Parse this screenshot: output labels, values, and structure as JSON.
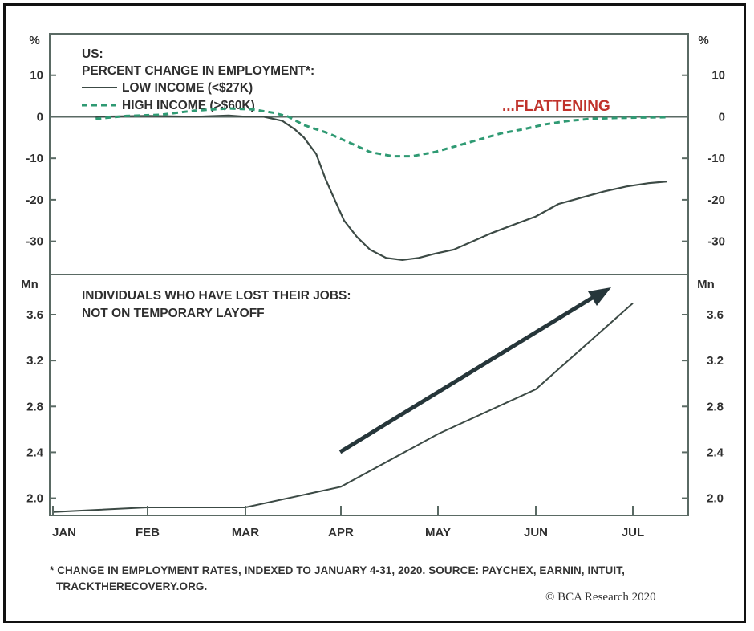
{
  "colors": {
    "frame": "#111111",
    "axis": "#5a6a64",
    "low_income_line": "#3c4a45",
    "high_income_line": "#2f9a73",
    "annotation_red": "#c0322b",
    "arrow": "#26363a",
    "text": "#2f2f2f"
  },
  "chart_data": [
    {
      "type": "line",
      "title_lines": [
        "US:",
        "PERCENT CHANGE IN EMPLOYMENT*:"
      ],
      "left_unit": "%",
      "right_unit": "%",
      "ylim": [
        -38,
        20
      ],
      "y_ticks": [
        10,
        0,
        -10,
        -20,
        -30
      ],
      "y_tick_labels": [
        "10",
        "0",
        "-10",
        "-20",
        "-30"
      ],
      "zero_line": true,
      "annotation": "...FLATTENING",
      "series": [
        {
          "name": "LOW INCOME (<$27K)",
          "style": "solid",
          "points": [
            [
              "01-15",
              0
            ],
            [
              "02-01",
              0.2
            ],
            [
              "02-15",
              0
            ],
            [
              "02-25",
              0.3
            ],
            [
              "03-01",
              0
            ],
            [
              "03-07",
              0
            ],
            [
              "03-13",
              -1
            ],
            [
              "03-17",
              -3
            ],
            [
              "03-20",
              -5
            ],
            [
              "03-24",
              -9
            ],
            [
              "03-27",
              -15
            ],
            [
              "03-30",
              -20
            ],
            [
              "04-02",
              -25
            ],
            [
              "04-06",
              -29
            ],
            [
              "04-10",
              -32
            ],
            [
              "04-15",
              -34
            ],
            [
              "04-20",
              -34.5
            ],
            [
              "04-25",
              -34
            ],
            [
              "04-30",
              -33
            ],
            [
              "05-06",
              -32
            ],
            [
              "05-12",
              -30
            ],
            [
              "05-18",
              -28
            ],
            [
              "05-25",
              -26
            ],
            [
              "06-01",
              -24
            ],
            [
              "06-08",
              -21
            ],
            [
              "06-15",
              -19.5
            ],
            [
              "06-22",
              -18
            ],
            [
              "06-29",
              -16.8
            ],
            [
              "07-06",
              -16
            ],
            [
              "07-12",
              -15.6
            ]
          ]
        },
        {
          "name": "HIGH INCOME (>$60K)",
          "style": "dashed",
          "points": [
            [
              "01-15",
              -0.5
            ],
            [
              "01-25",
              0.2
            ],
            [
              "02-05",
              0.5
            ],
            [
              "02-15",
              1.5
            ],
            [
              "02-25",
              2
            ],
            [
              "03-03",
              1.8
            ],
            [
              "03-10",
              1
            ],
            [
              "03-15",
              0
            ],
            [
              "03-20",
              -2
            ],
            [
              "03-28",
              -4
            ],
            [
              "04-03",
              -6
            ],
            [
              "04-10",
              -8.5
            ],
            [
              "04-17",
              -9.5
            ],
            [
              "04-23",
              -9.5
            ],
            [
              "04-30",
              -8.5
            ],
            [
              "05-07",
              -7
            ],
            [
              "05-14",
              -5.5
            ],
            [
              "05-21",
              -4
            ],
            [
              "05-28",
              -3
            ],
            [
              "06-04",
              -1.8
            ],
            [
              "06-11",
              -1
            ],
            [
              "06-18",
              -0.5
            ],
            [
              "06-25",
              -0.3
            ],
            [
              "07-02",
              -0.2
            ],
            [
              "07-12",
              -0.1
            ]
          ]
        }
      ]
    },
    {
      "type": "line",
      "title_lines": [
        "INDIVIDUALS WHO HAVE LOST THEIR JOBS:",
        "NOT ON TEMPORARY LAYOFF"
      ],
      "left_unit": "Mn",
      "right_unit": "Mn",
      "ylim": [
        1.85,
        3.95
      ],
      "y_ticks": [
        3.6,
        3.2,
        2.8,
        2.4,
        2.0
      ],
      "y_tick_labels": [
        "3.6",
        "3.2",
        "2.8",
        "2.4",
        "2.0"
      ],
      "trend_arrow": true,
      "series": [
        {
          "points": [
            [
              "01-01",
              1.88
            ],
            [
              "02-01",
              1.92
            ],
            [
              "03-01",
              1.92
            ],
            [
              "04-01",
              2.1
            ],
            [
              "05-01",
              2.56
            ],
            [
              "06-01",
              2.95
            ],
            [
              "07-01",
              3.7
            ]
          ]
        }
      ]
    }
  ],
  "x_axis": {
    "labels": [
      "JAN",
      "FEB",
      "MAR",
      "APR",
      "MAY",
      "JUN",
      "JUL"
    ]
  },
  "footnote": {
    "line1": "* CHANGE IN EMPLOYMENT RATES, INDEXED TO JANUARY 4-31, 2020. SOURCE: PAYCHEX, EARNIN, INTUIT,",
    "line2": "TRACKTHERECOVERY.ORG."
  },
  "credit": "© BCA Research 2020"
}
